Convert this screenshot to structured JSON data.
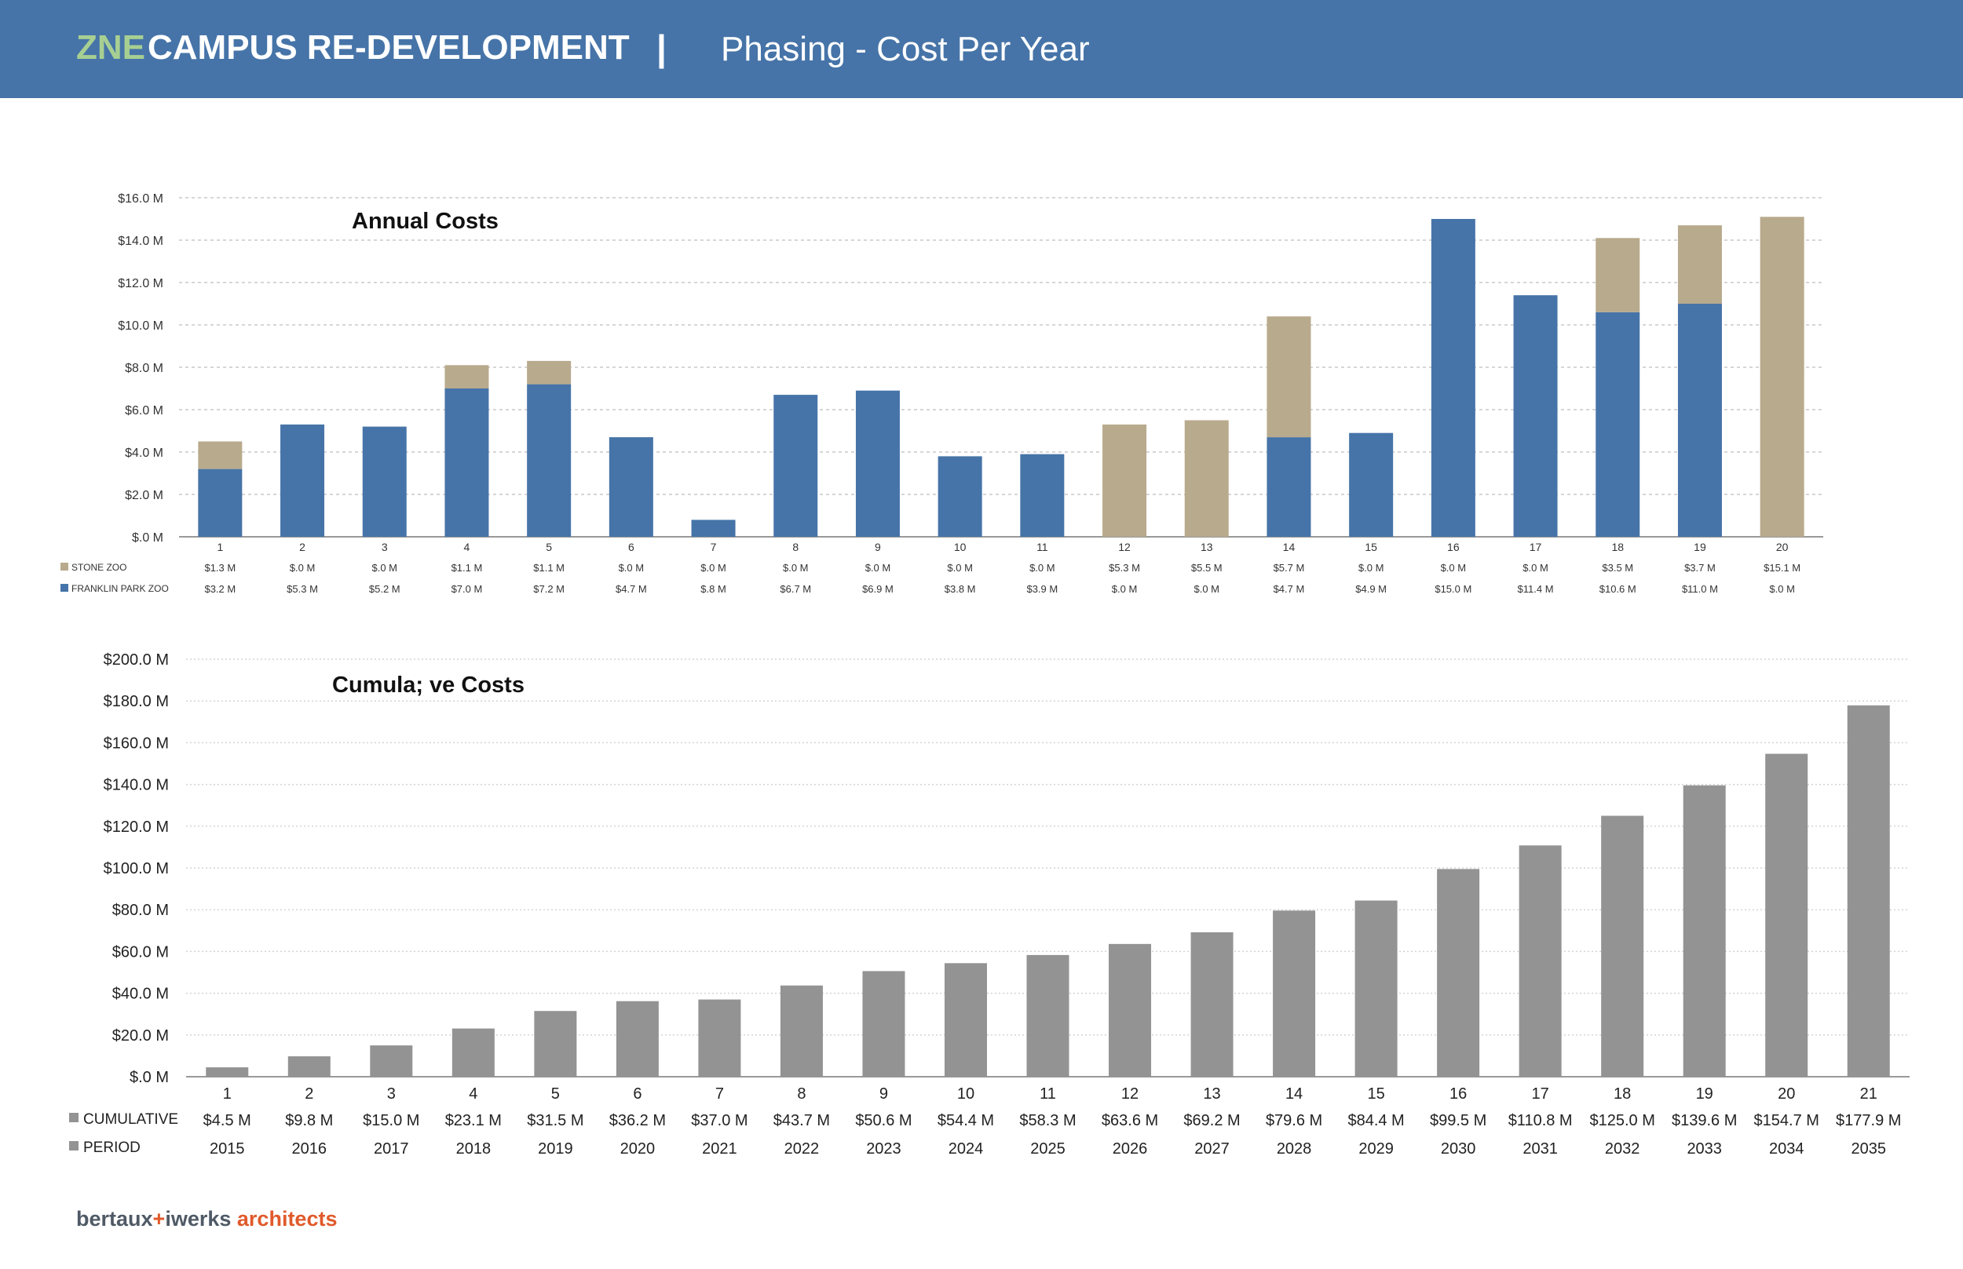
{
  "header": {
    "zne": "ZNE",
    "title": "CAMPUS RE-DEVELOPMENT",
    "separator": "|",
    "subtitle": "Phasing - Cost Per Year"
  },
  "footer": {
    "brand_a": "bertaux",
    "brand_plus": "+",
    "brand_b": "iwerks",
    "brand_c": "architects"
  },
  "colors": {
    "header": "#4674a8",
    "franklin": "#4674a8",
    "stone": "#b8aa8c",
    "cumulative": "#939393",
    "zne": "#a7cf92",
    "logo_accent": "#e05a2b"
  },
  "chart_data": [
    {
      "type": "bar",
      "stacked": true,
      "title": "Annual Costs",
      "categories": [
        "1",
        "2",
        "3",
        "4",
        "5",
        "6",
        "7",
        "8",
        "9",
        "10",
        "11",
        "12",
        "13",
        "14",
        "15",
        "16",
        "17",
        "18",
        "19",
        "20"
      ],
      "y_ticks": [
        "$16.0 M",
        "$14.0 M",
        "$12.0 M",
        "$10.0 M",
        "$8.0 M",
        "$6.0 M",
        "$4.0 M",
        "$2.0 M",
        "$.0 M"
      ],
      "ylim": [
        0,
        16
      ],
      "grid": true,
      "series": [
        {
          "name": "FRANKLIN PARK ZOO",
          "color": "#4674a8",
          "values": [
            3.2,
            5.3,
            5.2,
            7.0,
            7.2,
            4.7,
            0.8,
            6.7,
            6.9,
            3.8,
            3.9,
            0.0,
            0.0,
            4.7,
            4.9,
            15.0,
            11.4,
            10.6,
            11.0,
            0.0
          ],
          "labels": [
            "$3.2 M",
            "$5.3 M",
            "$5.2 M",
            "$7.0 M",
            "$7.2 M",
            "$4.7 M",
            "$.8 M",
            "$6.7 M",
            "$6.9 M",
            "$3.8 M",
            "$3.9 M",
            "$.0 M",
            "$.0 M",
            "$4.7 M",
            "$4.9 M",
            "$15.0 M",
            "$11.4 M",
            "$10.6 M",
            "$11.0 M",
            "$.0 M"
          ]
        },
        {
          "name": "STONE ZOO",
          "color": "#b8aa8c",
          "values": [
            1.3,
            0.0,
            0.0,
            1.1,
            1.1,
            0.0,
            0.0,
            0.0,
            0.0,
            0.0,
            0.0,
            5.3,
            5.5,
            5.7,
            0.0,
            0.0,
            0.0,
            3.5,
            3.7,
            15.1
          ],
          "labels": [
            "$1.3 M",
            "$.0 M",
            "$.0 M",
            "$1.1 M",
            "$1.1 M",
            "$.0 M",
            "$.0 M",
            "$.0 M",
            "$.0 M",
            "$.0 M",
            "$.0 M",
            "$5.3 M",
            "$5.5 M",
            "$5.7 M",
            "$.0 M",
            "$.0 M",
            "$.0 M",
            "$3.5 M",
            "$3.7 M",
            "$15.1 M"
          ]
        }
      ]
    },
    {
      "type": "bar",
      "title": "Cumula; ve Costs",
      "categories": [
        "1",
        "2",
        "3",
        "4",
        "5",
        "6",
        "7",
        "8",
        "9",
        "10",
        "11",
        "12",
        "13",
        "14",
        "15",
        "16",
        "17",
        "18",
        "19",
        "20",
        "21"
      ],
      "y_ticks": [
        "$200.0 M",
        "$180.0 M",
        "$160.0 M",
        "$140.0 M",
        "$120.0 M",
        "$100.0 M",
        "$80.0 M",
        "$60.0 M",
        "$40.0 M",
        "$20.0 M",
        "$.0 M"
      ],
      "ylim": [
        0,
        200
      ],
      "grid": true,
      "series": [
        {
          "name": "CUMULATIVE",
          "color": "#939393",
          "values": [
            4.5,
            9.8,
            15.0,
            23.1,
            31.5,
            36.2,
            37.0,
            43.7,
            50.6,
            54.4,
            58.3,
            63.6,
            69.2,
            79.6,
            84.4,
            99.5,
            110.8,
            125.0,
            139.6,
            154.7,
            177.9
          ],
          "labels": [
            "$4.5 M",
            "$9.8 M",
            "$15.0 M",
            "$23.1 M",
            "$31.5 M",
            "$36.2 M",
            "$37.0 M",
            "$43.7 M",
            "$50.6 M",
            "$54.4 M",
            "$58.3 M",
            "$63.6 M",
            "$69.2 M",
            "$79.6 M",
            "$84.4 M",
            "$99.5 M",
            "$110.8 M",
            "$125.0 M",
            "$139.6 M",
            "$154.7 M",
            "$177.9 M"
          ]
        }
      ],
      "table_rows": [
        {
          "name": "PERIOD",
          "color": "#939393",
          "labels": [
            "2015",
            "2016",
            "2017",
            "2018",
            "2019",
            "2020",
            "2021",
            "2022",
            "2023",
            "2024",
            "2025",
            "2026",
            "2027",
            "2028",
            "2029",
            "2030",
            "2031",
            "2032",
            "2033",
            "2034",
            "2035"
          ]
        }
      ]
    }
  ]
}
